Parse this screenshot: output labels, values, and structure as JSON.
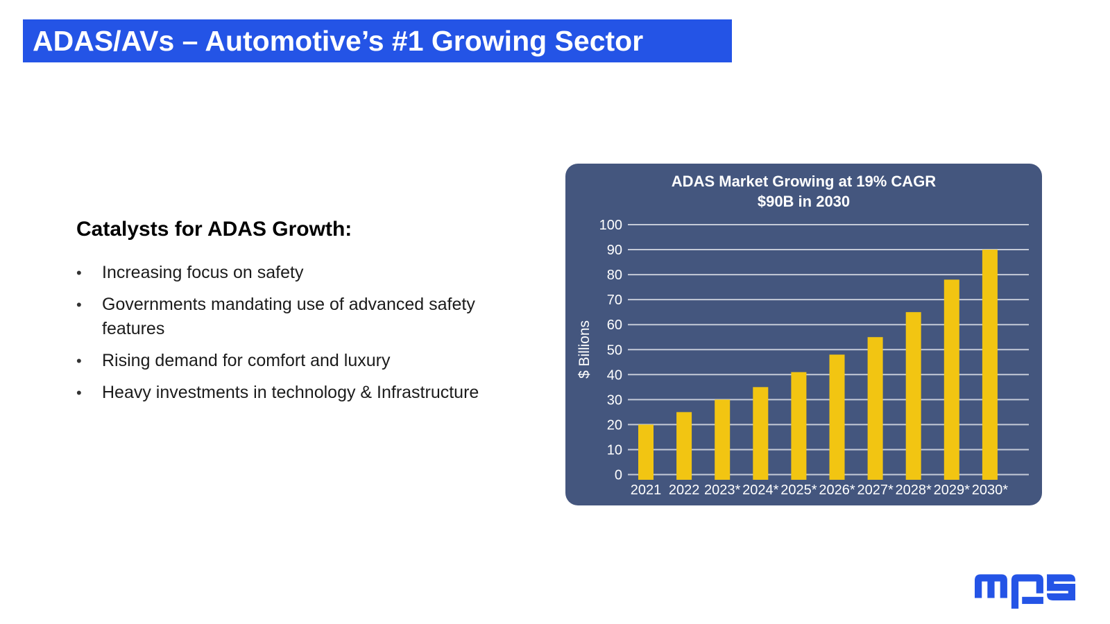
{
  "header": {
    "title": "ADAS/AVs – Automotive’s #1 Growing Sector",
    "bg_color": "#2454e6",
    "text_color": "#ffffff"
  },
  "content": {
    "heading": "Catalysts for ADAS Growth:",
    "bullet_marker": "•",
    "bullets": [
      "Increasing focus on safety",
      "Governments mandating use of advanced safety features",
      "Rising demand for comfort and luxury",
      "Heavy investments in technology & Infrastructure"
    ]
  },
  "chart_data": {
    "type": "bar",
    "title_lines": [
      "ADAS Market Growing at 19% CAGR",
      "$90B in 2030"
    ],
    "categories": [
      "2021",
      "2022",
      "2023*",
      "2024*",
      "2025*",
      "2026*",
      "2027*",
      "2028*",
      "2029*",
      "2030*"
    ],
    "values": [
      20,
      25,
      30,
      35,
      41,
      48,
      55,
      65,
      78,
      90
    ],
    "xlabel": "",
    "ylabel": "$ Billions",
    "ylim": [
      0,
      100
    ],
    "yticks": [
      0,
      10,
      20,
      30,
      40,
      50,
      60,
      70,
      80,
      90,
      100
    ],
    "grid": true,
    "legend": "none",
    "panel_bg": "#44567e",
    "bar_color": "#f2c512",
    "grid_color": "#c6cbd8",
    "axis_text_color": "#ffffff"
  },
  "logo": {
    "name": "MPS",
    "color": "#2454e6"
  }
}
